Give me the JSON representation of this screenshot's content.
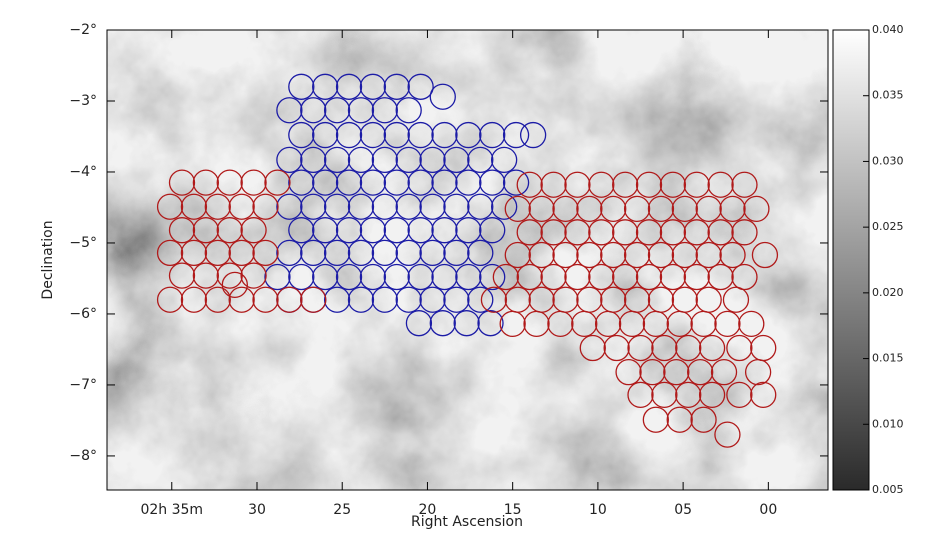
{
  "chart_data": {
    "type": "scatter",
    "xlabel": "Right Ascension",
    "ylabel": "Declination",
    "xlim": [
      38.8,
      -3.5
    ],
    "ylim": [
      -8.48,
      -2
    ],
    "xticks": [
      {
        "value": 35,
        "label": "02h 35m"
      },
      30,
      25,
      20,
      15,
      10,
      {
        "value": 5,
        "label": "05"
      },
      {
        "value": 0,
        "label": "00"
      }
    ],
    "yticks": [
      {
        "value": -2,
        "label": "−2°"
      },
      {
        "value": -3,
        "label": "−3°"
      },
      {
        "value": -4,
        "label": "−4°"
      },
      {
        "value": -5,
        "label": "−5°"
      },
      {
        "value": -6,
        "label": "−6°"
      },
      {
        "value": -7,
        "label": "−7°"
      },
      {
        "value": -8,
        "label": "−8°"
      }
    ],
    "colorbar": {
      "lim": [
        0.005,
        0.04
      ],
      "ticks": [
        0.005,
        {
          "value": 0.01,
          "label": "0.010"
        },
        0.015,
        {
          "value": 0.02,
          "label": "0.020"
        },
        0.025,
        {
          "value": 0.03,
          "label": "0.030"
        },
        0.035,
        {
          "value": 0.04,
          "label": "0.040"
        }
      ]
    },
    "series": [
      {
        "color": "#1c1ca6",
        "x": [
          27.4,
          26.0,
          24.6,
          23.2,
          21.8,
          20.4,
          19.1,
          28.1,
          26.7,
          25.3,
          23.9,
          22.5,
          21.1,
          27.4,
          26.0,
          24.6,
          23.2,
          21.8,
          20.4,
          19.0,
          17.6,
          16.2,
          14.8,
          13.8,
          28.1,
          26.7,
          25.3,
          23.9,
          22.5,
          21.1,
          19.7,
          18.3,
          16.9,
          15.5,
          27.4,
          26.0,
          24.6,
          23.2,
          21.8,
          20.4,
          19.0,
          17.6,
          16.2,
          14.8,
          28.1,
          26.7,
          25.3,
          23.9,
          22.5,
          21.1,
          19.7,
          18.3,
          16.9,
          15.5,
          27.4,
          26.0,
          24.6,
          23.2,
          21.8,
          20.4,
          19.0,
          17.6,
          16.2,
          28.1,
          26.7,
          25.3,
          23.9,
          22.5,
          21.1,
          19.7,
          18.3,
          16.9,
          28.8,
          27.4,
          26.0,
          24.6,
          23.2,
          21.8,
          20.4,
          19.0,
          17.6,
          16.2,
          28.1,
          26.7,
          25.3,
          23.9,
          22.5,
          21.1,
          19.7,
          18.3,
          16.9,
          20.5,
          19.1,
          17.7,
          16.3
        ],
        "values": [
          -2.8,
          -2.8,
          -2.8,
          -2.8,
          -2.8,
          -2.8,
          -2.94,
          -3.13,
          -3.13,
          -3.13,
          -3.13,
          -3.13,
          -3.13,
          -3.48,
          -3.48,
          -3.48,
          -3.48,
          -3.48,
          -3.48,
          -3.48,
          -3.48,
          -3.48,
          -3.48,
          -3.48,
          -3.83,
          -3.83,
          -3.83,
          -3.83,
          -3.83,
          -3.83,
          -3.83,
          -3.83,
          -3.83,
          -3.83,
          -4.15,
          -4.15,
          -4.15,
          -4.15,
          -4.15,
          -4.15,
          -4.15,
          -4.15,
          -4.15,
          -4.15,
          -4.49,
          -4.49,
          -4.49,
          -4.49,
          -4.49,
          -4.49,
          -4.49,
          -4.49,
          -4.49,
          -4.49,
          -4.82,
          -4.82,
          -4.82,
          -4.82,
          -4.82,
          -4.82,
          -4.82,
          -4.82,
          -4.82,
          -5.14,
          -5.14,
          -5.14,
          -5.14,
          -5.14,
          -5.14,
          -5.14,
          -5.14,
          -5.14,
          -5.48,
          -5.48,
          -5.48,
          -5.48,
          -5.48,
          -5.48,
          -5.48,
          -5.48,
          -5.48,
          -5.48,
          -5.8,
          -5.8,
          -5.8,
          -5.8,
          -5.8,
          -5.8,
          -5.8,
          -5.8,
          -5.8,
          -6.13,
          -6.13,
          -6.13,
          -6.13
        ]
      },
      {
        "color": "#b01a1a",
        "x": [
          34.4,
          33.0,
          31.6,
          30.2,
          28.8,
          35.1,
          33.7,
          32.3,
          30.9,
          29.5,
          34.4,
          33.0,
          31.6,
          30.2,
          35.1,
          33.7,
          32.3,
          30.9,
          29.5,
          34.4,
          33.0,
          31.6,
          30.2,
          31.3,
          35.1,
          33.7,
          32.3,
          30.9,
          29.5,
          28.1,
          26.7,
          14.0,
          12.6,
          11.2,
          9.8,
          8.4,
          7.0,
          5.6,
          4.2,
          2.8,
          1.4,
          14.7,
          13.3,
          11.9,
          10.5,
          9.1,
          7.7,
          6.3,
          4.9,
          3.5,
          2.1,
          0.7,
          14.0,
          12.6,
          11.2,
          9.8,
          8.4,
          7.0,
          5.6,
          4.2,
          2.8,
          1.4,
          14.7,
          13.3,
          11.9,
          10.5,
          9.1,
          7.7,
          6.3,
          4.9,
          3.5,
          2.1,
          0.2,
          15.4,
          14.0,
          12.6,
          11.2,
          9.8,
          8.4,
          7.0,
          5.6,
          4.2,
          2.8,
          1.4,
          16.1,
          14.7,
          13.3,
          11.9,
          10.5,
          9.1,
          7.7,
          6.3,
          4.9,
          3.5,
          1.9,
          15.0,
          13.6,
          12.2,
          10.8,
          9.4,
          8.0,
          6.6,
          5.2,
          3.8,
          2.4,
          1.0,
          10.3,
          8.9,
          7.5,
          6.1,
          4.7,
          3.3,
          1.7,
          0.3,
          8.2,
          6.8,
          5.4,
          4.0,
          2.6,
          0.6,
          7.5,
          6.1,
          4.7,
          3.3,
          1.7,
          0.3,
          6.6,
          5.2,
          3.8,
          2.4
        ],
        "values": [
          -4.15,
          -4.15,
          -4.15,
          -4.15,
          -4.15,
          -4.49,
          -4.49,
          -4.49,
          -4.49,
          -4.49,
          -4.82,
          -4.82,
          -4.82,
          -4.82,
          -5.14,
          -5.14,
          -5.14,
          -5.14,
          -5.14,
          -5.46,
          -5.46,
          -5.46,
          -5.46,
          -5.59,
          -5.8,
          -5.8,
          -5.8,
          -5.8,
          -5.8,
          -5.8,
          -5.8,
          -4.18,
          -4.18,
          -4.18,
          -4.18,
          -4.18,
          -4.18,
          -4.18,
          -4.18,
          -4.18,
          -4.18,
          -4.52,
          -4.52,
          -4.52,
          -4.52,
          -4.52,
          -4.52,
          -4.52,
          -4.52,
          -4.52,
          -4.52,
          -4.52,
          -4.85,
          -4.85,
          -4.85,
          -4.85,
          -4.85,
          -4.85,
          -4.85,
          -4.85,
          -4.85,
          -4.85,
          -5.17,
          -5.17,
          -5.17,
          -5.17,
          -5.17,
          -5.17,
          -5.17,
          -5.17,
          -5.17,
          -5.17,
          -5.17,
          -5.48,
          -5.48,
          -5.48,
          -5.48,
          -5.48,
          -5.48,
          -5.48,
          -5.48,
          -5.48,
          -5.48,
          -5.48,
          -5.8,
          -5.8,
          -5.8,
          -5.8,
          -5.8,
          -5.8,
          -5.8,
          -5.8,
          -5.8,
          -5.8,
          -5.8,
          -6.14,
          -6.14,
          -6.14,
          -6.14,
          -6.14,
          -6.14,
          -6.14,
          -6.14,
          -6.14,
          -6.14,
          -6.14,
          -6.48,
          -6.48,
          -6.48,
          -6.48,
          -6.48,
          -6.48,
          -6.48,
          -6.48,
          -6.82,
          -6.82,
          -6.82,
          -6.82,
          -6.82,
          -6.82,
          -7.14,
          -7.14,
          -7.14,
          -7.14,
          -7.14,
          -7.14,
          -7.49,
          -7.49,
          -7.49,
          -7.7
        ]
      }
    ]
  }
}
